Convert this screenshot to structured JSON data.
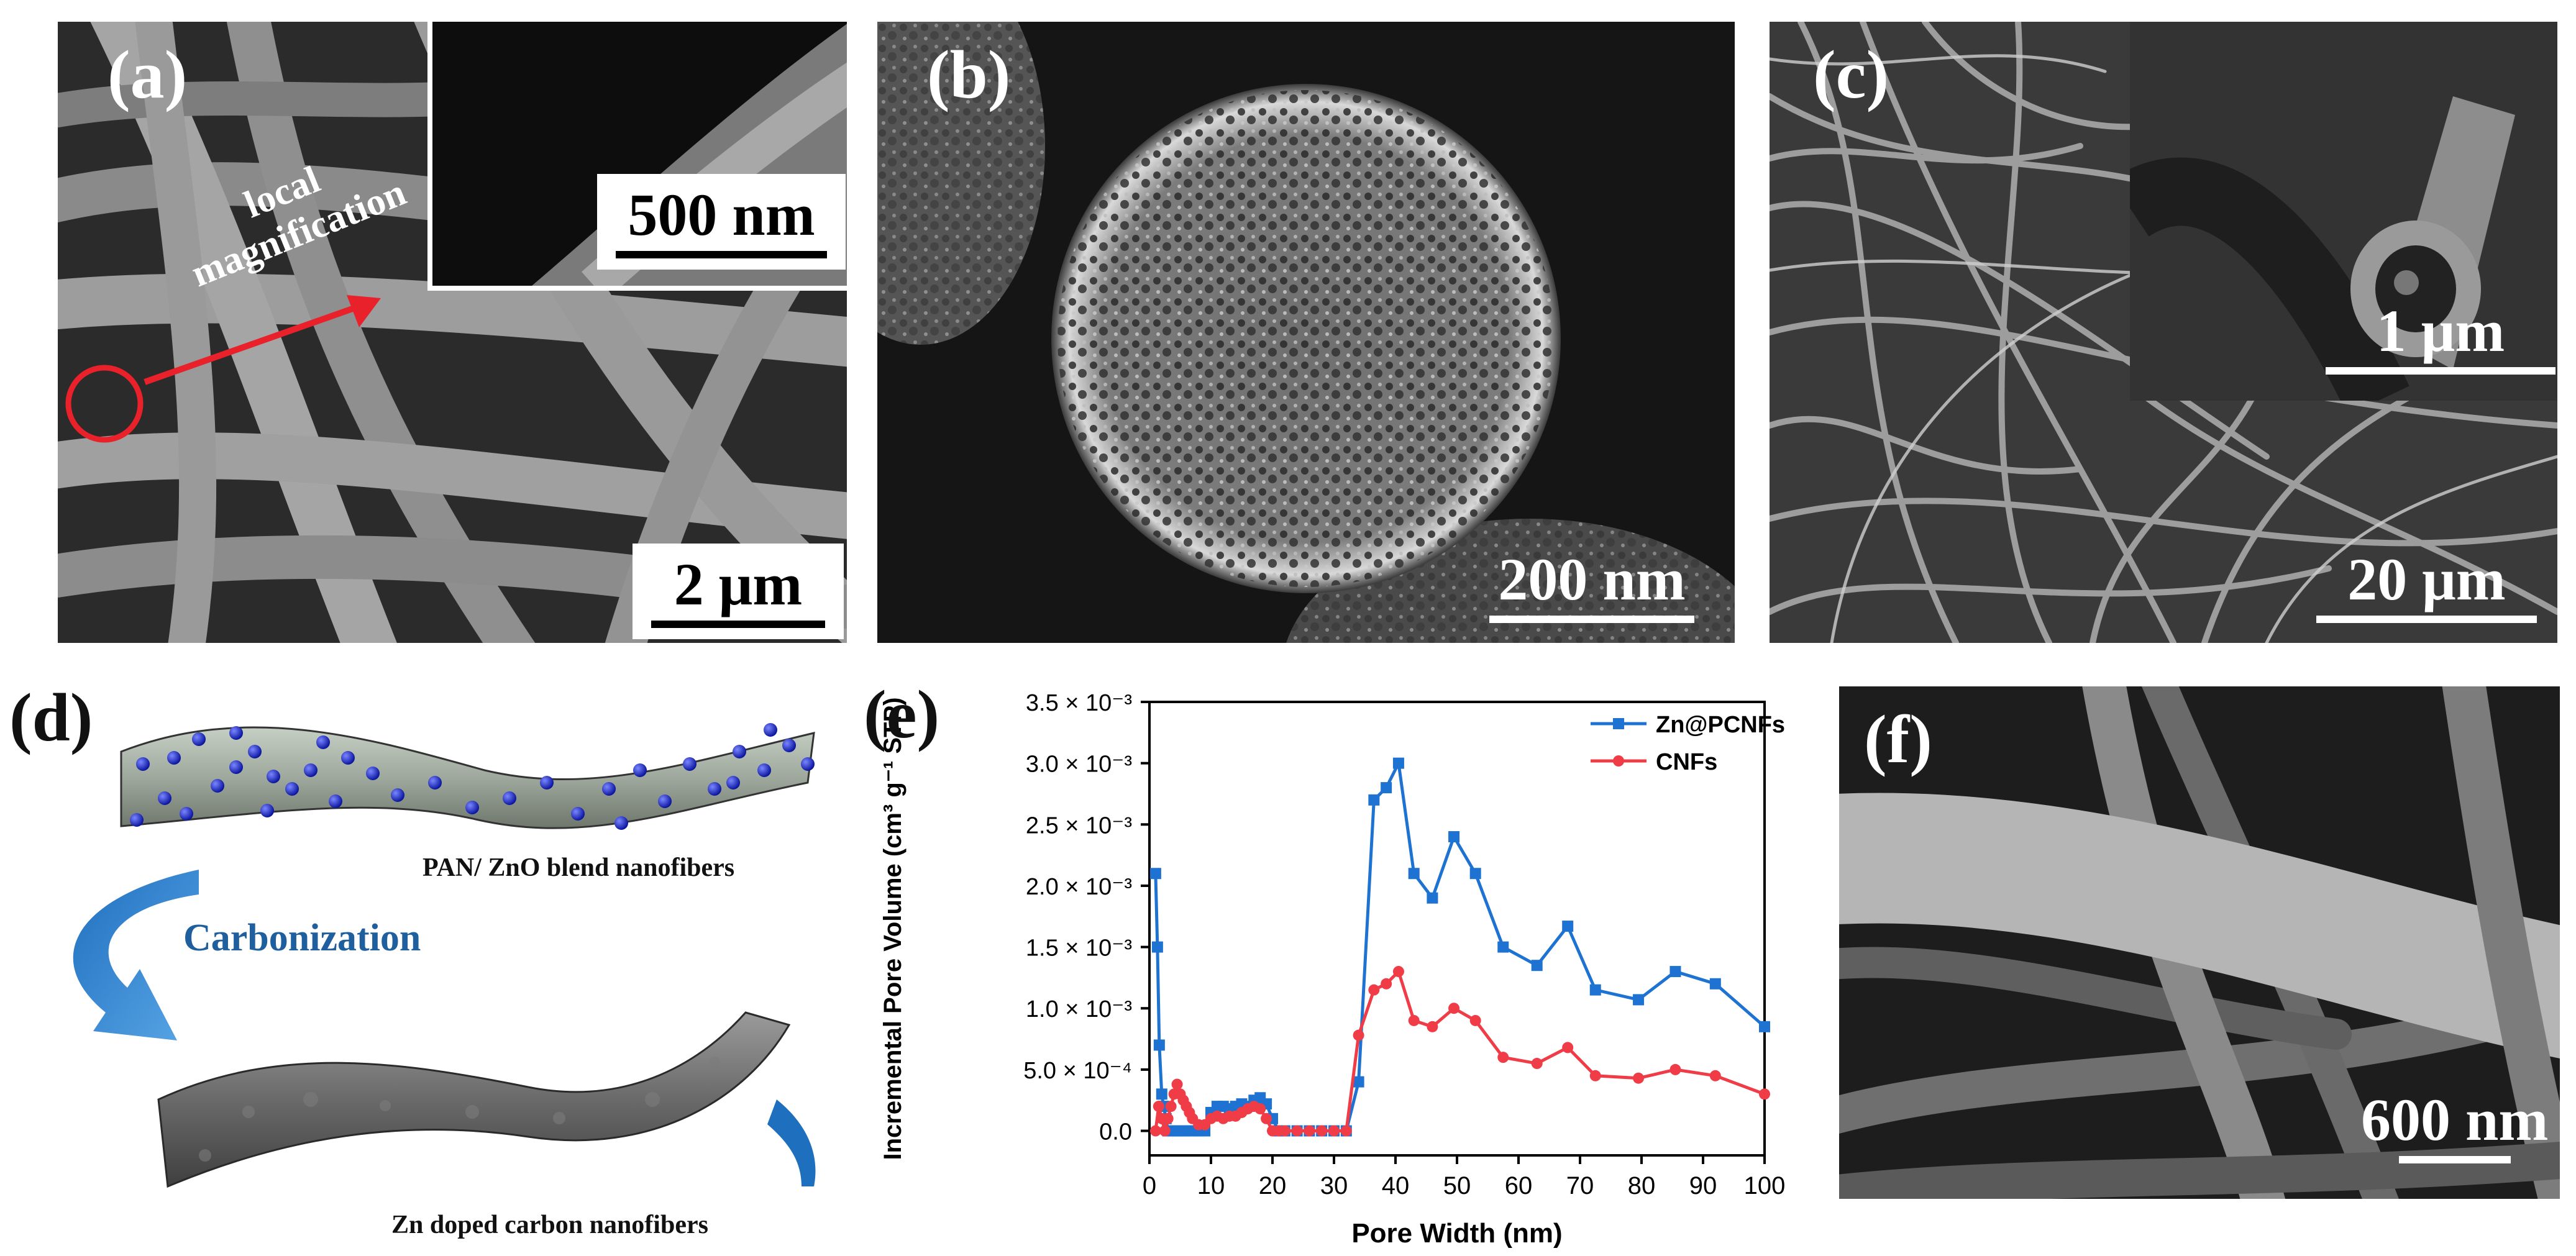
{
  "panels": {
    "a": {
      "label": "(a)",
      "scale_main": "2 μm",
      "scale_inset": "500 nm",
      "annotation": "local magnification"
    },
    "b": {
      "label": "(b)",
      "scale": "200 nm"
    },
    "c": {
      "label": "(c)",
      "scale_main": "20 μm",
      "scale_inset": "1 μm"
    },
    "d": {
      "label": "(d)",
      "caption_top": "PAN/ ZnO blend nanofibers",
      "arrow_text": "Carbonization",
      "caption_bottom": "Zn doped carbon nanofibers"
    },
    "e": {
      "label": "(e)"
    },
    "f": {
      "label": "(f)",
      "scale": "600 nm"
    }
  },
  "colors": {
    "series_zn": "#1e73d2",
    "series_cnf": "#f03c46",
    "arrow_red": "#e8212a",
    "carbonization_blue": "#1f5f9e",
    "sphere_blue": "#1a2bbf"
  },
  "chart_data": {
    "type": "line",
    "xlabel": "Pore Width (nm)",
    "ylabel": "Incremental Pore Volume (cm³ g⁻¹ STP)",
    "xlim": [
      0,
      100
    ],
    "ylim": [
      -0.0002,
      0.0035
    ],
    "xticks": [
      0,
      10,
      20,
      30,
      40,
      50,
      60,
      70,
      80,
      90,
      100
    ],
    "yticks": [
      0.0,
      0.0005,
      0.001,
      0.0015,
      0.002,
      0.0025,
      0.003,
      0.0035
    ],
    "ytick_labels": [
      "0.0",
      "5.0 × 10⁻⁴",
      "1.0 × 10⁻³",
      "1.5 × 10⁻³",
      "2.0 × 10⁻³",
      "2.5 × 10⁻³",
      "3.0 × 10⁻³",
      "3.5 × 10⁻³"
    ],
    "legend_position": "top-right",
    "series": [
      {
        "name": "Zn@PCNFs",
        "color": "#1e73d2",
        "marker": "square",
        "x": [
          1.0,
          1.3,
          1.6,
          2.0,
          2.3,
          2.7,
          3.0,
          3.5,
          4.0,
          4.5,
          5.0,
          5.5,
          6.0,
          7.0,
          8.0,
          9.0,
          10.0,
          11.0,
          12.0,
          13.0,
          14.0,
          15.0,
          16.0,
          17.0,
          18.0,
          19.0,
          20.0,
          21.0,
          22.0,
          24.0,
          26.0,
          28.0,
          30.0,
          32.0,
          34.0,
          36.5,
          38.5,
          40.5,
          43.0,
          46.0,
          49.5,
          53.0,
          57.5,
          63.0,
          68.0,
          72.5,
          79.5,
          85.5,
          92.0,
          100.0
        ],
        "y": [
          0.0021,
          0.0015,
          0.0007,
          0.0003,
          0.0002,
          0.0001,
          0.0,
          0.0,
          0.0,
          0.0,
          0.0,
          0.0,
          0.0,
          0.0,
          0.0,
          0.0,
          0.00015,
          0.0002,
          0.0002,
          0.00018,
          0.0002,
          0.00022,
          0.0002,
          0.00025,
          0.00027,
          0.00022,
          0.0001,
          0.0,
          0.0,
          0.0,
          0.0,
          0.0,
          0.0,
          0.0,
          0.0004,
          0.0027,
          0.0028,
          0.003,
          0.0021,
          0.0019,
          0.0024,
          0.0021,
          0.0015,
          0.00135,
          0.00167,
          0.00115,
          0.00107,
          0.0013,
          0.0012,
          0.00085
        ]
      },
      {
        "name": "CNFs",
        "color": "#f03c46",
        "marker": "circle",
        "x": [
          1.0,
          1.5,
          2.0,
          2.5,
          3.0,
          3.5,
          4.0,
          4.5,
          5.0,
          5.5,
          6.0,
          6.5,
          7.0,
          8.0,
          9.0,
          10.0,
          11.0,
          12.0,
          13.0,
          14.0,
          15.0,
          16.0,
          17.0,
          18.0,
          19.0,
          20.0,
          21.0,
          22.0,
          24.0,
          26.0,
          28.0,
          30.0,
          32.0,
          34.0,
          36.5,
          38.5,
          40.5,
          43.0,
          46.0,
          49.5,
          53.0,
          57.5,
          63.0,
          68.0,
          72.5,
          79.5,
          85.5,
          92.0,
          100.0
        ],
        "y": [
          0.0,
          0.0002,
          0.0001,
          0.0,
          0.0001,
          0.0002,
          0.0003,
          0.00038,
          0.0003,
          0.00025,
          0.0002,
          0.00015,
          0.0001,
          5e-05,
          5e-05,
          0.0001,
          0.00012,
          0.0001,
          0.00012,
          0.00012,
          0.00015,
          0.00018,
          0.0002,
          0.00018,
          0.0001,
          0.0,
          0.0,
          0.0,
          0.0,
          0.0,
          0.0,
          0.0,
          0.0,
          0.00078,
          0.00115,
          0.0012,
          0.0013,
          0.0009,
          0.00085,
          0.001,
          0.0009,
          0.0006,
          0.00055,
          0.00068,
          0.00045,
          0.00043,
          0.0005,
          0.00045,
          0.0003
        ]
      }
    ]
  }
}
